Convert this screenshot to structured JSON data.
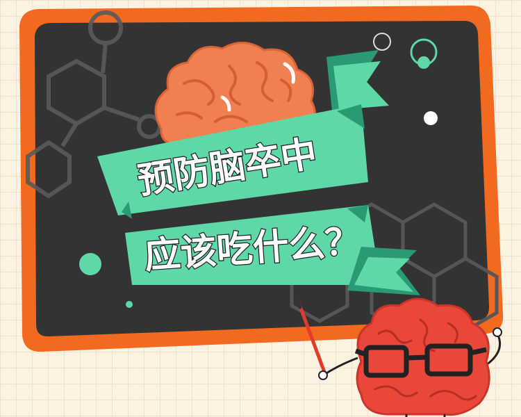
{
  "title": {
    "line1": "预防脑卒中",
    "line2": "应该吃什么？"
  },
  "colors": {
    "frame_orange": "#f26a1f",
    "board_dark": "#333333",
    "ribbon_green": "#5fd8a8",
    "ribbon_dark_green": "#2a9a72",
    "brain_orange": "#f08050",
    "brain_red": "#e8473a",
    "glasses_black": "#222222",
    "pointer_red": "#e23b2e"
  },
  "icons": [
    "brain-icon",
    "glasses-icon",
    "hexagon-decor",
    "molecule-decor"
  ]
}
